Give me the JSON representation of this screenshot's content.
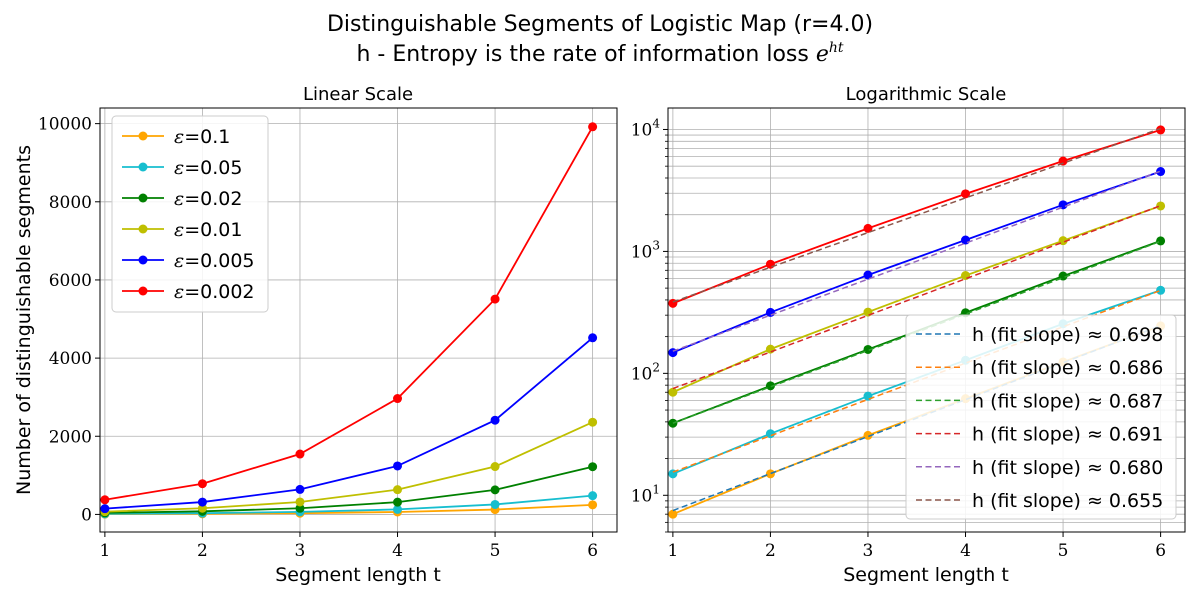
{
  "figure": {
    "title_line1": "Distinguishable Segments of Logistic Map (r=4.0)",
    "title_line2_text": "h - Entropy is the rate of information loss ",
    "title_line2_math": "e",
    "title_line2_sup": "ht"
  },
  "chart_data": [
    {
      "type": "line",
      "title": "Linear Scale",
      "xlabel": "Segment length t",
      "ylabel": "Number of distinguishable segments",
      "yscale": "linear",
      "xlim": [
        0.95,
        6.25
      ],
      "ylim": [
        -450,
        10400
      ],
      "xticks": [
        1,
        2,
        3,
        4,
        5,
        6
      ],
      "yticks": [
        0,
        2000,
        4000,
        6000,
        8000,
        10000
      ],
      "grid": true,
      "legend_position": "upper left",
      "x": [
        1,
        2,
        3,
        4,
        5,
        6
      ],
      "series": [
        {
          "name": "ε=0.1",
          "epsilon": "0.1",
          "color": "#ffa500",
          "values": [
            7,
            15,
            31,
            62,
            124,
            245
          ]
        },
        {
          "name": "ε=0.05",
          "epsilon": "0.05",
          "color": "#17becf",
          "values": [
            15,
            32,
            65,
            128,
            255,
            480
          ]
        },
        {
          "name": "ε=0.02",
          "epsilon": "0.02",
          "color": "#008000",
          "values": [
            39,
            79,
            157,
            314,
            628,
            1220
          ]
        },
        {
          "name": "ε=0.01",
          "epsilon": "0.01",
          "color": "#bfbf00",
          "values": [
            70,
            158,
            318,
            634,
            1225,
            2360
          ]
        },
        {
          "name": "ε=0.005",
          "epsilon": "0.005",
          "color": "#0000ff",
          "values": [
            148,
            316,
            640,
            1240,
            2410,
            4520
          ]
        },
        {
          "name": "ε=0.002",
          "epsilon": "0.002",
          "color": "#ff0000",
          "values": [
            375,
            785,
            1545,
            2965,
            5510,
            9920
          ]
        }
      ]
    },
    {
      "type": "line",
      "title": "Logarithmic Scale",
      "xlabel": "Segment length t",
      "ylabel": "",
      "yscale": "log",
      "xlim": [
        0.95,
        6.25
      ],
      "ylim": [
        5,
        15000
      ],
      "xticks": [
        1,
        2,
        3,
        4,
        5,
        6
      ],
      "yticks": [
        10,
        100,
        1000,
        10000
      ],
      "ytick_labels": [
        {
          "base": "10",
          "exp": "1"
        },
        {
          "base": "10",
          "exp": "2"
        },
        {
          "base": "10",
          "exp": "3"
        },
        {
          "base": "10",
          "exp": "4"
        }
      ],
      "grid": true,
      "legend_position": "lower right",
      "x": [
        1,
        2,
        3,
        4,
        5,
        6
      ],
      "series": [
        {
          "color": "#ffa500",
          "values": [
            7,
            15,
            31,
            62,
            124,
            245
          ]
        },
        {
          "color": "#17becf",
          "values": [
            15,
            32,
            65,
            128,
            255,
            480
          ]
        },
        {
          "color": "#008000",
          "values": [
            39,
            79,
            157,
            314,
            628,
            1220
          ]
        },
        {
          "color": "#bfbf00",
          "values": [
            70,
            158,
            318,
            634,
            1225,
            2360
          ]
        },
        {
          "color": "#0000ff",
          "values": [
            148,
            316,
            640,
            1240,
            2410,
            4520
          ]
        },
        {
          "color": "#ff0000",
          "values": [
            375,
            785,
            1545,
            2965,
            5510,
            9920
          ]
        }
      ],
      "fits": [
        {
          "name": "h (fit slope) ≈ 0.698",
          "color": "#1f77b4",
          "slope": 0.698,
          "y_at_1": 7.5
        },
        {
          "name": "h (fit slope) ≈ 0.686",
          "color": "#ff7f0e",
          "slope": 0.686,
          "y_at_1": 15.5
        },
        {
          "name": "h (fit slope) ≈ 0.687",
          "color": "#2ca02c",
          "slope": 0.687,
          "y_at_1": 39
        },
        {
          "name": "h (fit slope) ≈ 0.691",
          "color": "#d62728",
          "slope": 0.691,
          "y_at_1": 75
        },
        {
          "name": "h (fit slope) ≈ 0.680",
          "color": "#9467bd",
          "slope": 0.68,
          "y_at_1": 152
        },
        {
          "name": "h (fit slope) ≈ 0.655",
          "color": "#8c564b",
          "slope": 0.655,
          "y_at_1": 385
        }
      ]
    }
  ]
}
